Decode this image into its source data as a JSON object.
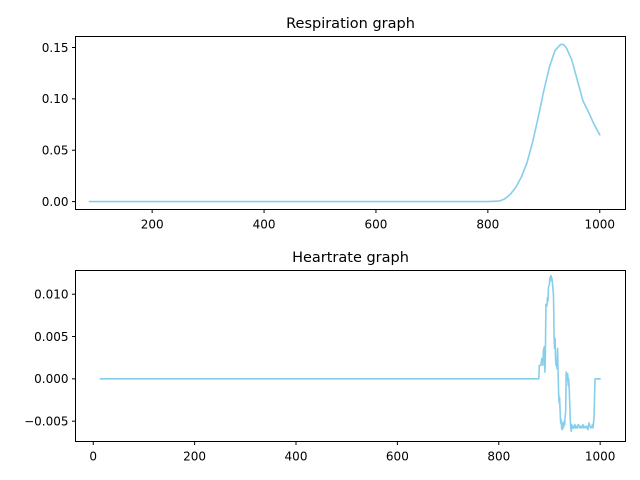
{
  "chart_data": [
    {
      "type": "line",
      "title": "Respiration graph",
      "xlabel": "",
      "ylabel": "",
      "xlim": [
        63,
        1046
      ],
      "ylim": [
        -0.0077,
        0.1607
      ],
      "xticks": [
        200,
        400,
        600,
        800,
        1000
      ],
      "yticks": [
        0.0,
        0.05,
        0.1,
        0.15
      ],
      "xtick_labels": [
        "200",
        "400",
        "600",
        "800",
        "1000"
      ],
      "ytick_labels": [
        "0.00",
        "0.05",
        "0.10",
        "0.15"
      ],
      "grid": false,
      "color": "#87ceeb",
      "series": [
        {
          "x": [
            88,
            200,
            400,
            600,
            800,
            820,
            830,
            840,
            850,
            860,
            870,
            880,
            890,
            900,
            910,
            920,
            930,
            935,
            940,
            950,
            960,
            970,
            980,
            990,
            1000
          ],
          "y": [
            0.0,
            0.0,
            0.0,
            0.0,
            0.0,
            0.0005,
            0.0025,
            0.007,
            0.014,
            0.024,
            0.038,
            0.058,
            0.082,
            0.108,
            0.131,
            0.147,
            0.153,
            0.153,
            0.15,
            0.138,
            0.118,
            0.098,
            0.087,
            0.075,
            0.065
          ]
        }
      ]
    },
    {
      "type": "line",
      "title": "Heartrate graph",
      "xlabel": "",
      "ylabel": "",
      "xlim": [
        -35,
        1050
      ],
      "ylim": [
        -0.0074,
        0.0128
      ],
      "xticks": [
        0,
        200,
        400,
        600,
        800,
        1000
      ],
      "yticks": [
        -0.005,
        0.0,
        0.005,
        0.01
      ],
      "xtick_labels": [
        "0",
        "200",
        "400",
        "600",
        "800",
        "1000"
      ],
      "ytick_labels": [
        "−0.005",
        "0.000",
        "0.005",
        "0.010"
      ],
      "grid": false,
      "color": "#87ceeb",
      "series": [
        {
          "x": [
            14,
            200,
            400,
            600,
            800,
            879,
            880,
            883,
            885,
            887,
            888,
            890,
            891,
            892,
            893,
            895,
            896,
            897,
            898,
            900,
            901,
            902,
            903,
            905,
            906,
            908,
            909,
            910,
            911,
            912,
            913,
            914,
            915,
            916,
            917,
            918,
            919,
            920,
            921,
            922,
            923,
            924,
            925,
            926,
            927,
            928,
            929,
            930,
            931,
            932,
            933,
            934,
            935,
            936,
            937,
            938,
            939,
            940,
            941,
            942,
            943,
            944,
            945,
            946,
            947,
            948,
            949,
            950,
            952,
            954,
            955,
            957,
            959,
            960,
            962,
            964,
            966,
            968,
            970,
            972,
            974,
            976,
            978,
            980,
            982,
            984,
            985,
            986,
            987,
            988,
            989,
            990,
            992,
            995,
            998,
            1000
          ],
          "y": [
            0.0,
            0.0,
            0.0,
            0.0,
            0.0,
            0.0,
            0.0016,
            0.0016,
            0.0024,
            0.0016,
            0.0034,
            0.0038,
            0.0008,
            0.0032,
            0.0088,
            0.0086,
            0.0096,
            0.0092,
            0.0108,
            0.0112,
            0.012,
            0.0116,
            0.0122,
            0.0118,
            0.0112,
            0.0098,
            0.0052,
            0.0036,
            0.0048,
            0.0024,
            0.0016,
            0.0018,
            0.0012,
            0.0036,
            0.0008,
            -0.0016,
            -0.0028,
            -0.0022,
            -0.0038,
            -0.0052,
            -0.0048,
            -0.0058,
            -0.006,
            -0.0052,
            -0.0058,
            -0.0056,
            -0.005,
            -0.0054,
            -0.0044,
            -0.0038,
            0.0008,
            0.0004,
            -0.0002,
            0.0006,
            -0.0008,
            0.0,
            -0.0012,
            -0.003,
            -0.0048,
            -0.0058,
            -0.0062,
            -0.0054,
            -0.0056,
            -0.0058,
            -0.0058,
            -0.0056,
            -0.0058,
            -0.0054,
            -0.0058,
            -0.0056,
            -0.0058,
            -0.0054,
            -0.0056,
            -0.0058,
            -0.0056,
            -0.0058,
            -0.0054,
            -0.0058,
            -0.0056,
            -0.0058,
            -0.0056,
            -0.006,
            -0.0052,
            -0.0056,
            -0.0058,
            -0.0056,
            -0.0054,
            -0.0058,
            -0.0052,
            -0.0044,
            -0.002,
            0.0,
            0.0,
            0.0,
            0.0,
            0.0
          ]
        }
      ]
    }
  ]
}
